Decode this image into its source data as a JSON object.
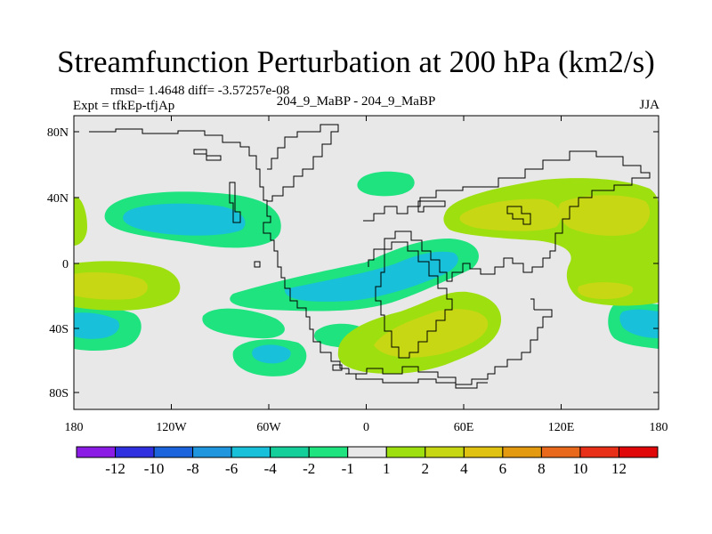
{
  "title": "Streamfunction Perturbation at 200 hPa (km2/s)",
  "stats": "rmsd= 1.4648 diff= -3.57257e-08",
  "expt": "Expt = tfkEp-tfjAp",
  "case_label": "204_9_MaBP - 204_9_MaBP",
  "season": "JJA",
  "lat_ticks": [
    "80N",
    "40N",
    "0",
    "40S",
    "80S"
  ],
  "lon_ticks": [
    "180",
    "120W",
    "60W",
    "0",
    "60E",
    "120E",
    "180"
  ],
  "colorbar": {
    "labels": [
      "-12",
      "-10",
      "-8",
      "-6",
      "-4",
      "-2",
      "-1",
      "1",
      "2",
      "4",
      "6",
      "8",
      "10",
      "12"
    ],
    "colors": [
      "#8a1ce6",
      "#3030e0",
      "#1c64dc",
      "#1f96dd",
      "#18c0d9",
      "#14cf9a",
      "#1ee37f",
      "#e8e8e8",
      "#9ee00f",
      "#c8d714",
      "#dfc212",
      "#e49a10",
      "#e8681c",
      "#e83018",
      "#e00808"
    ]
  },
  "colors": {
    "background": "#e8e8e8",
    "neg_weak": "#1ee37f",
    "neg_mid": "#18c0d9",
    "pos_weak": "#9ee00f",
    "pos_mid": "#c8d714",
    "coast": "#000000"
  }
}
